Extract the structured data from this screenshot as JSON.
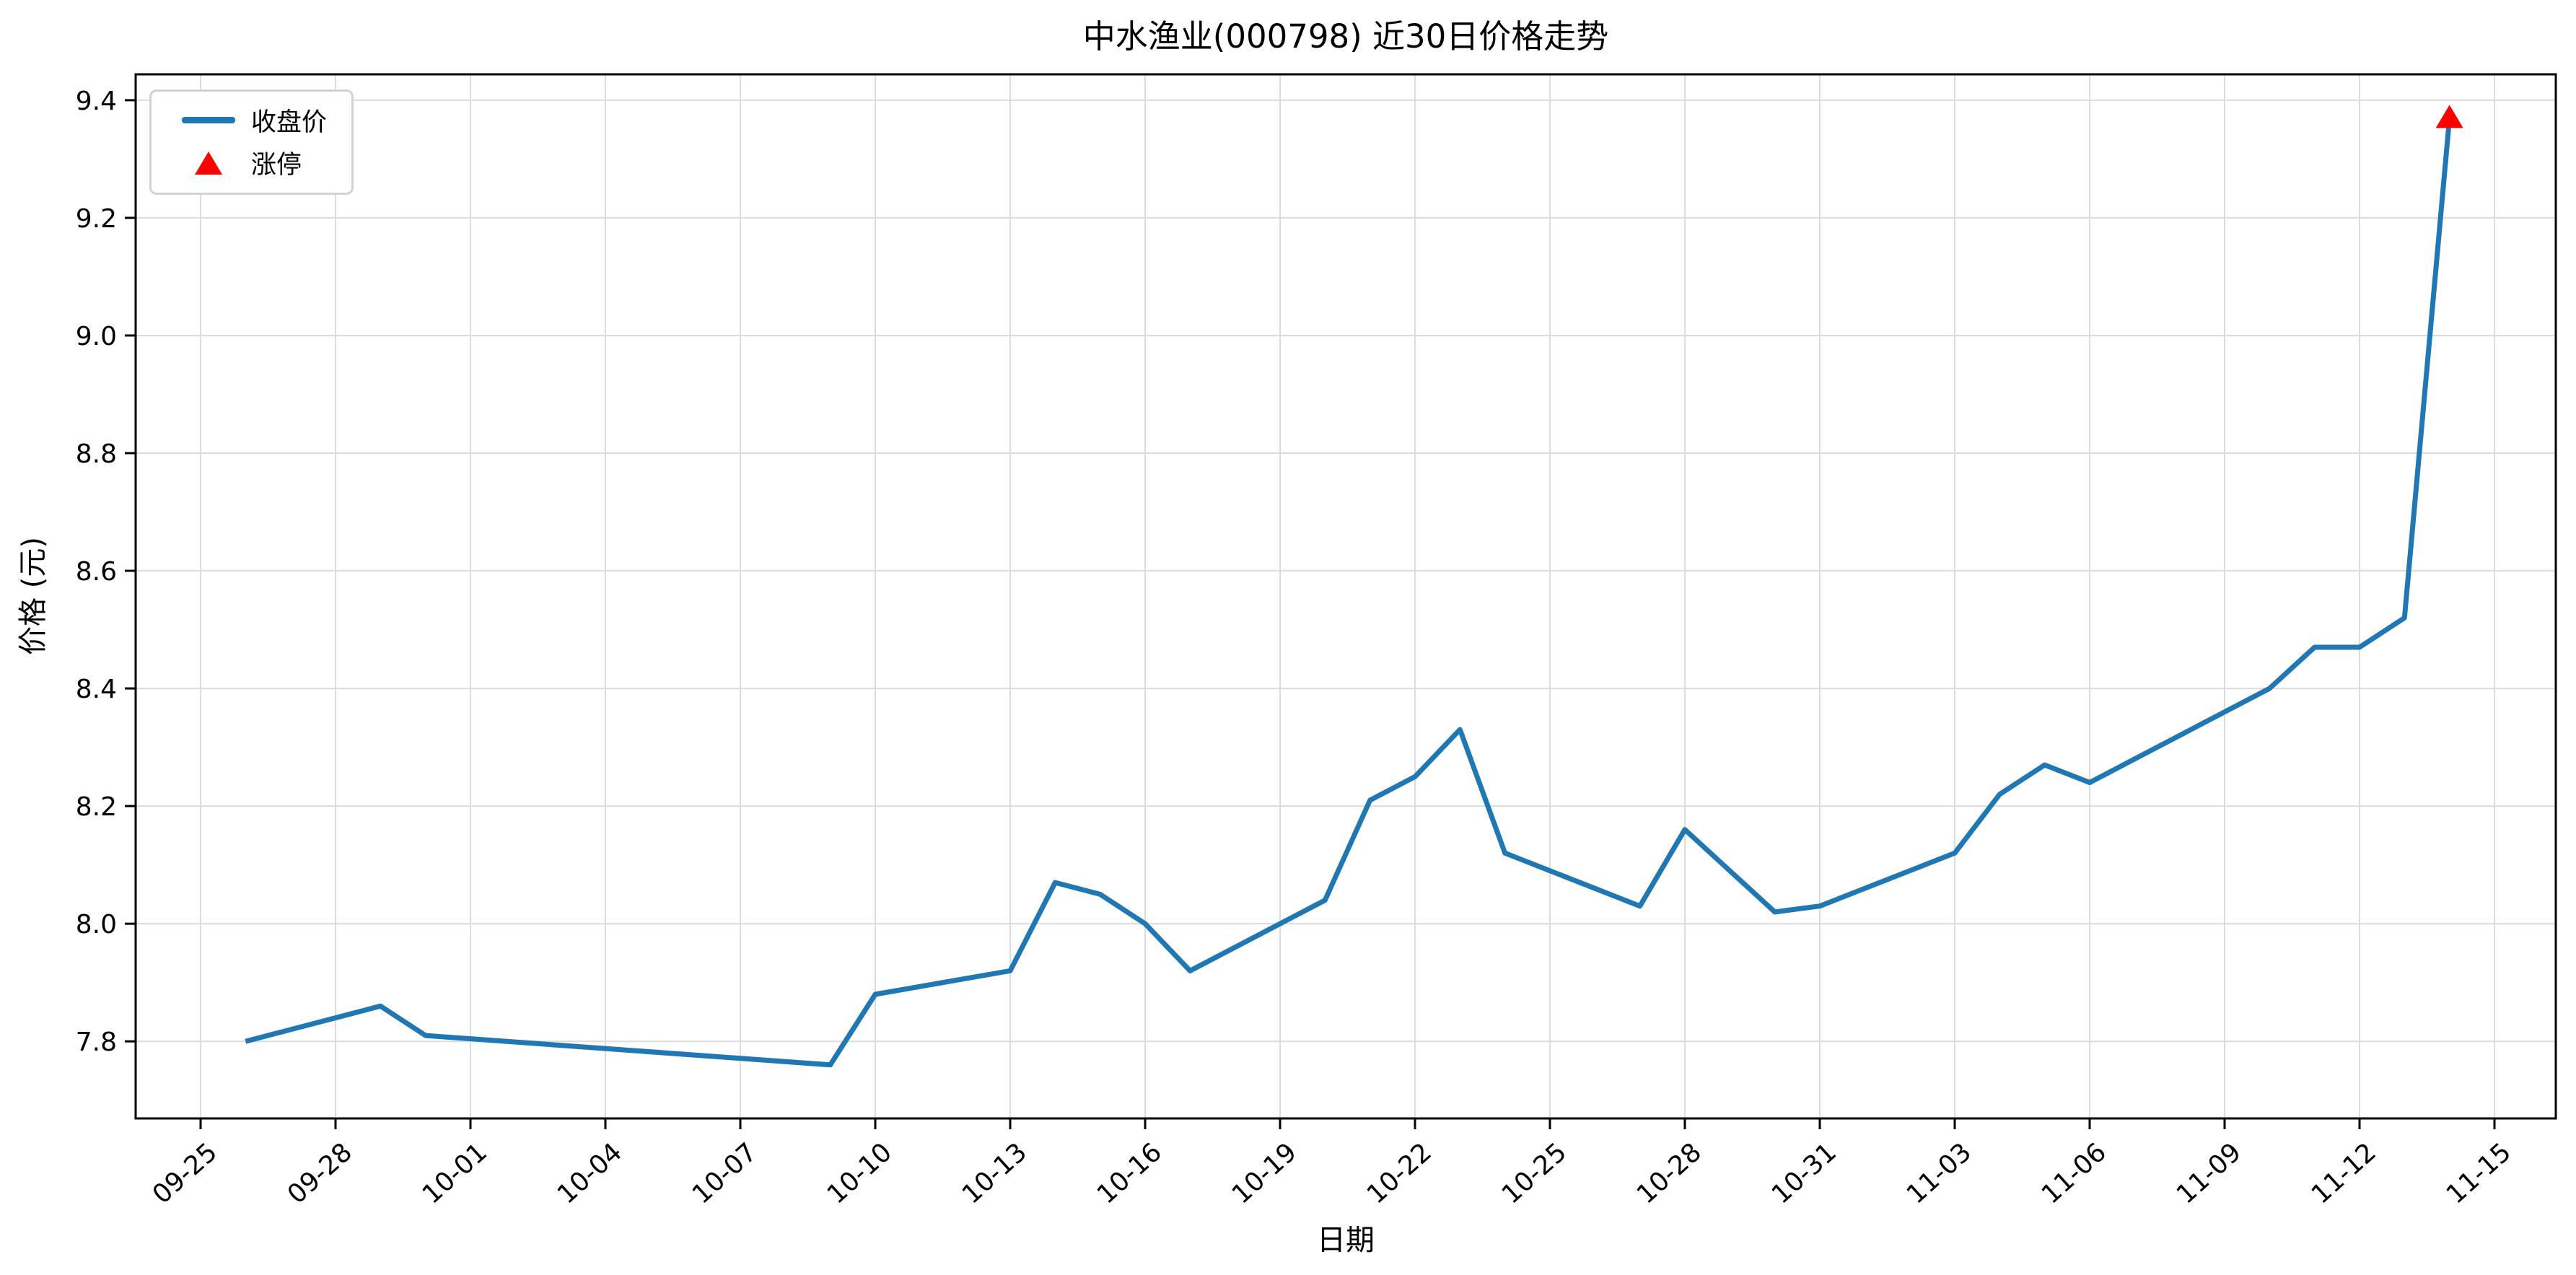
{
  "chart_data": {
    "type": "line",
    "title": "中水渔业(000798) 近30日价格走势",
    "xlabel": "日期",
    "ylabel": "价格 (元)",
    "legend_position": "upper-left",
    "grid": true,
    "background": "#ffffff",
    "grid_color": "#dcdcdc",
    "ylim": [
      7.669,
      9.444
    ],
    "y_ticks": [
      "7.8",
      "8.0",
      "8.2",
      "8.4",
      "8.6",
      "8.8",
      "9.0",
      "9.2",
      "9.4"
    ],
    "x_ticks": [
      "09-25",
      "09-28",
      "10-01",
      "10-04",
      "10-07",
      "10-10",
      "10-13",
      "10-16",
      "10-19",
      "10-22",
      "10-25",
      "10-28",
      "10-31",
      "11-03",
      "11-06",
      "11-09",
      "11-12",
      "11-15"
    ],
    "series": [
      {
        "name": "收盘价",
        "color": "#1f77b4",
        "points": [
          {
            "date": "09-26",
            "close": 7.8
          },
          {
            "date": "09-29",
            "close": 7.86
          },
          {
            "date": "09-30",
            "close": 7.81
          },
          {
            "date": "10-09",
            "close": 7.76
          },
          {
            "date": "10-10",
            "close": 7.88
          },
          {
            "date": "10-13",
            "close": 7.92
          },
          {
            "date": "10-14",
            "close": 8.07
          },
          {
            "date": "10-15",
            "close": 8.05
          },
          {
            "date": "10-16",
            "close": 8.0
          },
          {
            "date": "10-17",
            "close": 7.92
          },
          {
            "date": "10-20",
            "close": 8.04
          },
          {
            "date": "10-21",
            "close": 8.21
          },
          {
            "date": "10-22",
            "close": 8.25
          },
          {
            "date": "10-23",
            "close": 8.33
          },
          {
            "date": "10-24",
            "close": 8.12
          },
          {
            "date": "10-27",
            "close": 8.03
          },
          {
            "date": "10-28",
            "close": 8.16
          },
          {
            "date": "10-29",
            "close": 8.09
          },
          {
            "date": "10-30",
            "close": 8.02
          },
          {
            "date": "10-31",
            "close": 8.03
          },
          {
            "date": "11-03",
            "close": 8.12
          },
          {
            "date": "11-04",
            "close": 8.22
          },
          {
            "date": "11-05",
            "close": 8.27
          },
          {
            "date": "11-06",
            "close": 8.24
          },
          {
            "date": "11-07",
            "close": 8.28
          },
          {
            "date": "11-10",
            "close": 8.4
          },
          {
            "date": "11-11",
            "close": 8.47
          },
          {
            "date": "11-12",
            "close": 8.47
          },
          {
            "date": "11-13",
            "close": 8.52
          },
          {
            "date": "11-14",
            "close": 9.37
          }
        ]
      }
    ],
    "markers": [
      {
        "name": "涨停",
        "type": "triangle-up",
        "color": "#ff0000",
        "date": "11-14",
        "value": 9.37
      }
    ]
  }
}
